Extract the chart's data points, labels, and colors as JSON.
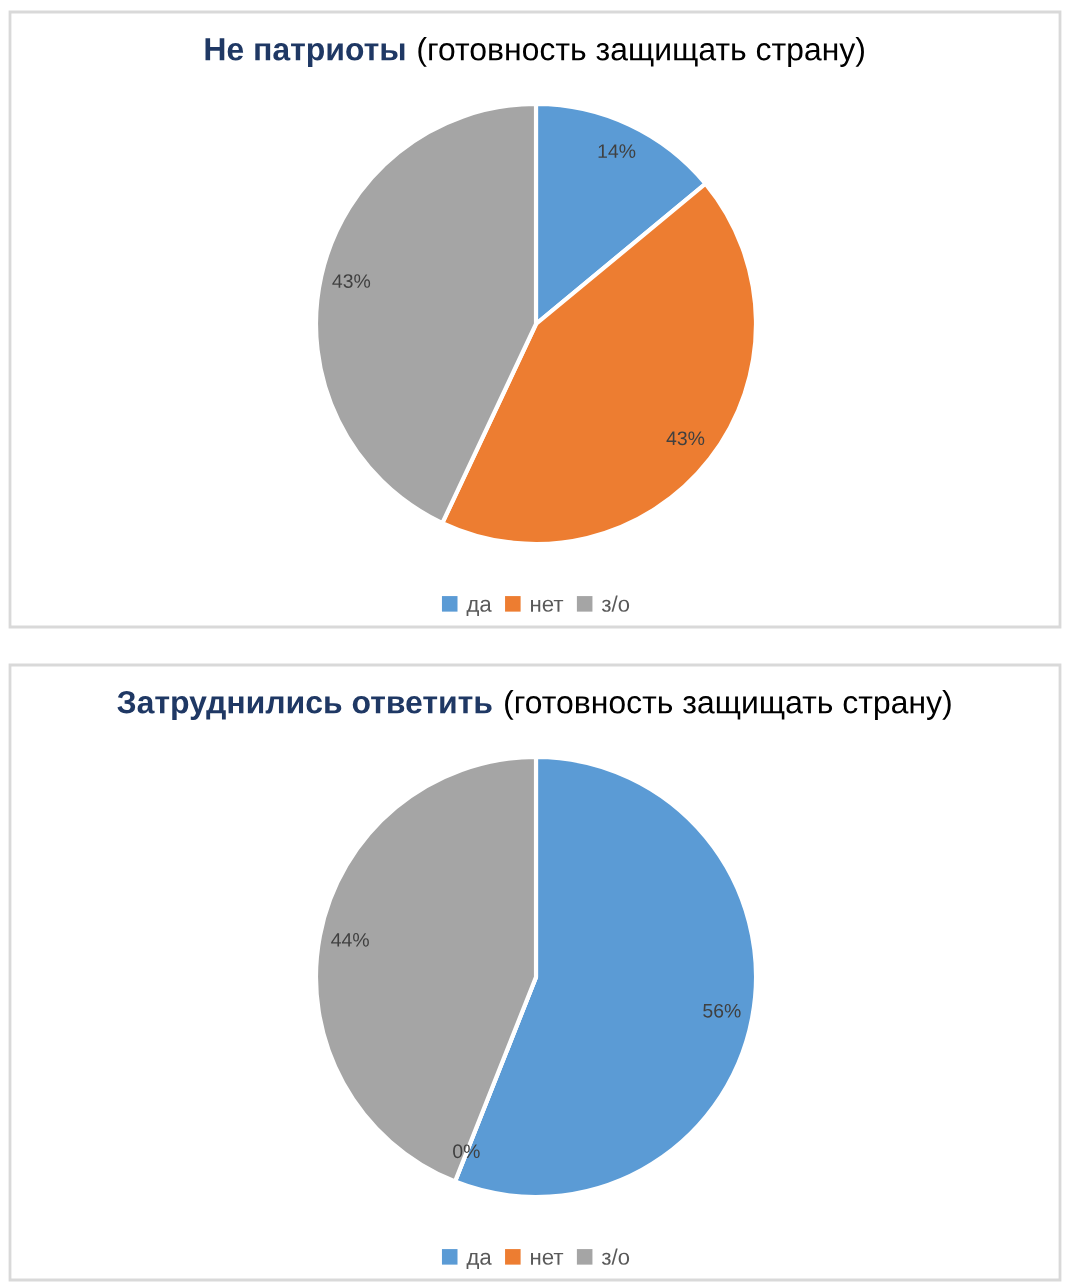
{
  "chart_data": [
    {
      "type": "pie",
      "title": "Не патриоты",
      "subtitle": "(готовность защищать страну)",
      "categories": [
        "да",
        "нет",
        "з/о"
      ],
      "values": [
        14,
        43,
        43
      ],
      "colors": [
        "#5b9bd5",
        "#ed7d31",
        "#a5a5a5"
      ],
      "value_labels": [
        "14%",
        "43%",
        "43%"
      ],
      "legend": "bottom"
    },
    {
      "type": "pie",
      "title": "Затруднились ответить",
      "subtitle": "(готовность защищать страну)",
      "categories": [
        "да",
        "нет",
        "з/о"
      ],
      "values": [
        56,
        0,
        44
      ],
      "colors": [
        "#5b9bd5",
        "#ed7d31",
        "#a5a5a5"
      ],
      "value_labels": [
        "56%",
        "0%",
        "44%"
      ],
      "legend": "bottom"
    }
  ]
}
